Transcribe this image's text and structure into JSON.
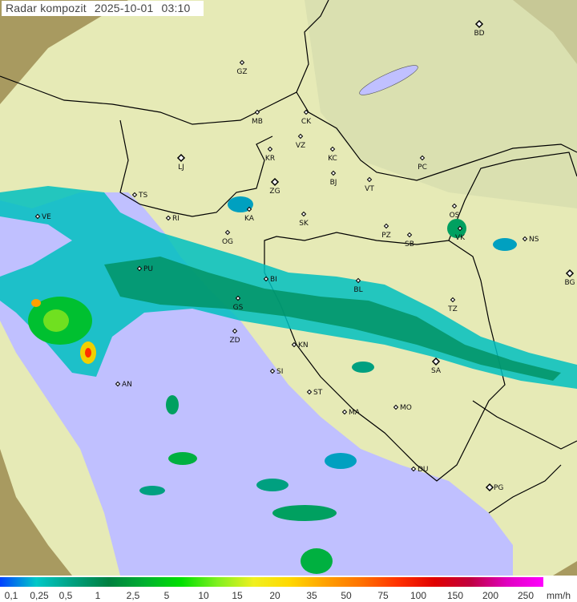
{
  "title": {
    "product": "Radar kompozit",
    "date": "2025-10-01",
    "time": "03:10"
  },
  "legend": {
    "unit": "mm/h",
    "ticks": [
      "0,1",
      "0,25",
      "0,5",
      "1",
      "2,5",
      "5",
      "10",
      "15",
      "20",
      "35",
      "50",
      "75",
      "100",
      "150",
      "200",
      "250"
    ],
    "colors": [
      "#0040ff",
      "#00c8c8",
      "#00a080",
      "#008040",
      "#00b030",
      "#00e000",
      "#80f020",
      "#f0f020",
      "#ffd800",
      "#ffa000",
      "#ff7000",
      "#ff3000",
      "#e00000",
      "#c00040",
      "#e000c0",
      "#ff00ff"
    ]
  },
  "map_colors": {
    "terrain": "#a89a60",
    "coverage": "#e8ecb8",
    "sea": "#c0c0ff",
    "border": "#000000"
  },
  "cities": [
    {
      "code": "BD"
    },
    {
      "code": "GZ"
    },
    {
      "code": "MB"
    },
    {
      "code": "CK"
    },
    {
      "code": "VZ"
    },
    {
      "code": "KR"
    },
    {
      "code": "KC"
    },
    {
      "code": "LJ"
    },
    {
      "code": "PC"
    },
    {
      "code": "BJ"
    },
    {
      "code": "ZG"
    },
    {
      "code": "VT"
    },
    {
      "code": "TS"
    },
    {
      "code": "VE"
    },
    {
      "code": "KA"
    },
    {
      "code": "SK"
    },
    {
      "code": "OS"
    },
    {
      "code": "RI"
    },
    {
      "code": "VK"
    },
    {
      "code": "NS"
    },
    {
      "code": "PZ"
    },
    {
      "code": "SB"
    },
    {
      "code": "OG"
    },
    {
      "code": "PU"
    },
    {
      "code": "BI"
    },
    {
      "code": "BL"
    },
    {
      "code": "BG"
    },
    {
      "code": "GS"
    },
    {
      "code": "TZ"
    },
    {
      "code": "ZD"
    },
    {
      "code": "KN"
    },
    {
      "code": "SA"
    },
    {
      "code": "SI"
    },
    {
      "code": "AN"
    },
    {
      "code": "ST"
    },
    {
      "code": "MO"
    },
    {
      "code": "MA"
    },
    {
      "code": "DU"
    },
    {
      "code": "PG"
    }
  ]
}
